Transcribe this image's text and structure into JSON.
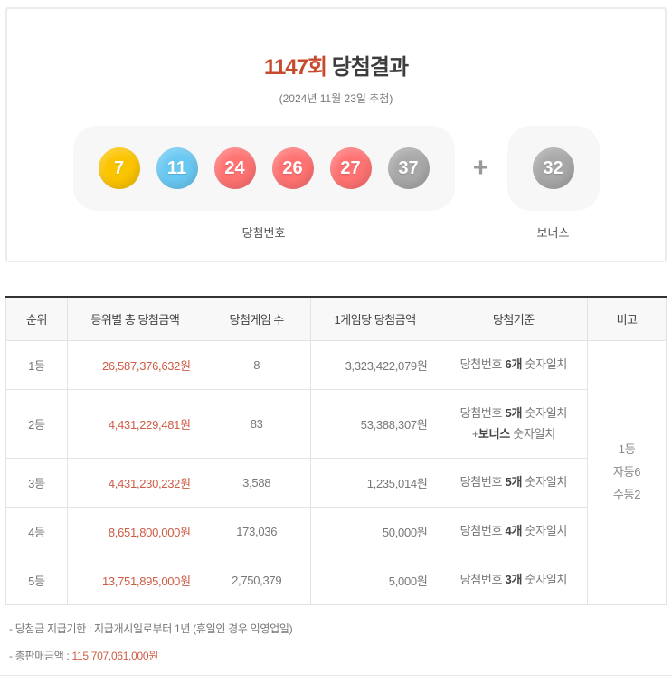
{
  "header": {
    "round": "1147회",
    "title_suffix": " 당첨결과",
    "draw_date": "(2024년 11월 23일 추첨)",
    "winning_label": "당첨번호",
    "bonus_label": "보너스",
    "plus_sign": "+"
  },
  "ball_colors": {
    "yellow": "#fbc400",
    "blue": "#69c8f2",
    "red": "#ff7272",
    "gray": "#a8a8a8"
  },
  "balls": {
    "winning": [
      {
        "number": "7",
        "color": "#fbc400"
      },
      {
        "number": "11",
        "color": "#69c8f2"
      },
      {
        "number": "24",
        "color": "#ff7272"
      },
      {
        "number": "26",
        "color": "#ff7272"
      },
      {
        "number": "27",
        "color": "#ff7272"
      },
      {
        "number": "37",
        "color": "#a8a8a8"
      }
    ],
    "bonus": {
      "number": "32",
      "color": "#a8a8a8"
    }
  },
  "accent_colors": {
    "title_red": "#c64a2b",
    "amount_red": "#cd5c45"
  },
  "table": {
    "headers": [
      "순위",
      "등위별 총 당첨금액",
      "당첨게임 수",
      "1게임당 당첨금액",
      "당첨기준",
      "비고"
    ],
    "rows": [
      {
        "rank": "1등",
        "total": "26,587,376,632원",
        "games": "8",
        "per_game": "3,323,422,079원",
        "criteria": [
          {
            "pre": "당첨번호 ",
            "bold": "6개",
            "post": " 숫자일치"
          }
        ]
      },
      {
        "rank": "2등",
        "total": "4,431,229,481원",
        "games": "83",
        "per_game": "53,388,307원",
        "criteria": [
          {
            "pre": "당첨번호 ",
            "bold": "5개",
            "post": " 숫자일치"
          },
          {
            "pre": "+",
            "bold": "보너스",
            "post": " 숫자일치"
          }
        ]
      },
      {
        "rank": "3등",
        "total": "4,431,230,232원",
        "games": "3,588",
        "per_game": "1,235,014원",
        "criteria": [
          {
            "pre": "당첨번호 ",
            "bold": "5개",
            "post": " 숫자일치"
          }
        ]
      },
      {
        "rank": "4등",
        "total": "8,651,800,000원",
        "games": "173,036",
        "per_game": "50,000원",
        "criteria": [
          {
            "pre": "당첨번호 ",
            "bold": "4개",
            "post": " 숫자일치"
          }
        ]
      },
      {
        "rank": "5등",
        "total": "13,751,895,000원",
        "games": "2,750,379",
        "per_game": "5,000원",
        "criteria": [
          {
            "pre": "당첨번호 ",
            "bold": "3개",
            "post": " 숫자일치"
          }
        ]
      }
    ],
    "remark_lines": [
      "1등",
      "자동6",
      "수동2"
    ]
  },
  "footer": {
    "note1": "-  당첨금 지급기한 : 지급개시일로부터 1년 (휴일인 경우 익영업일)",
    "note2_prefix": "-  총판매금액 : ",
    "note2_value": "115,707,061,000원"
  }
}
